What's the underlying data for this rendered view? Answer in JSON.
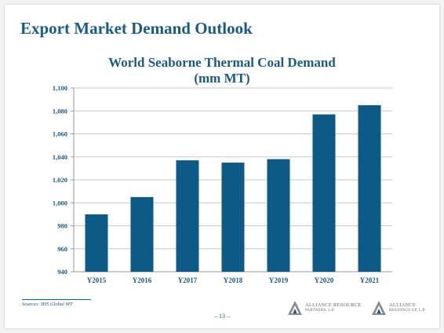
{
  "slide": {
    "title": "Export Market Demand Outlook",
    "source": "Sources: IHS Global MT",
    "page_number": "– 13 –",
    "logos": [
      {
        "line1": "ALLIANCE RESOURCE",
        "line2": "PARTNERS, L.P.",
        "icon": "triangle-logo-icon"
      },
      {
        "line1": "ALLIANCE",
        "line2": "HOLDINGS GP, L.P.",
        "icon": "triangle-logo-icon"
      }
    ]
  },
  "chart_data": {
    "type": "bar",
    "title_line1": "World Seaborne Thermal Coal Demand",
    "title_line2": "(mm MT)",
    "categories": [
      "Y2015",
      "Y2016",
      "Y2017",
      "Y2018",
      "Y2019",
      "Y2020",
      "Y2021"
    ],
    "values": [
      990,
      1005,
      1037,
      1035,
      1038,
      1077,
      1085
    ],
    "ylim": [
      940,
      1100
    ],
    "yticks": [
      940,
      960,
      980,
      1000,
      1020,
      1040,
      1060,
      1080,
      1100
    ],
    "ytick_labels": [
      "940",
      "960",
      "980",
      "1,000",
      "1,020",
      "1,040",
      "1,060",
      "1,080",
      "1,100"
    ],
    "grid": true,
    "bar_color": "#0d5a86",
    "grid_color": "#c8c8c8",
    "text_color": "#1b5a85"
  }
}
